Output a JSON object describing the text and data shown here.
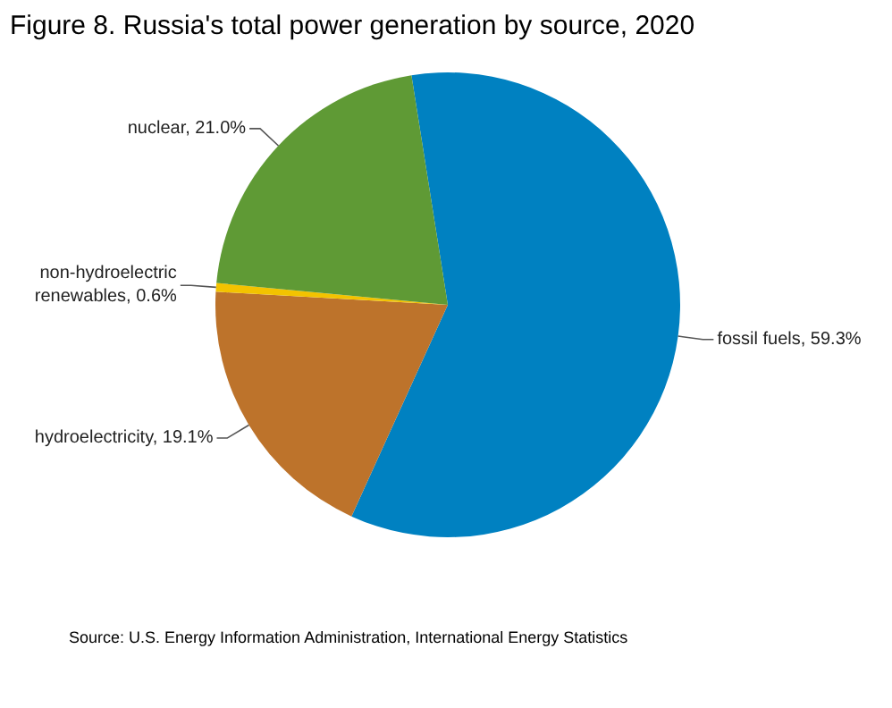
{
  "chart_data": {
    "type": "pie",
    "title": "Figure 8. Russia's total power generation by source, 2020",
    "categories": [
      "fossil fuels",
      "hydroelectricity",
      "non-hydroelectric renewables",
      "nuclear"
    ],
    "values": [
      59.3,
      19.1,
      0.6,
      21.0
    ],
    "value_labels": [
      "59.3%",
      "19.1%",
      "0.6%",
      "21.0%"
    ],
    "colors": [
      "#0081c1",
      "#bd732b",
      "#f3c300",
      "#5f9a35"
    ],
    "annotations": [
      "Source: U.S. Energy Information Administration, International Energy Statistics"
    ]
  }
}
